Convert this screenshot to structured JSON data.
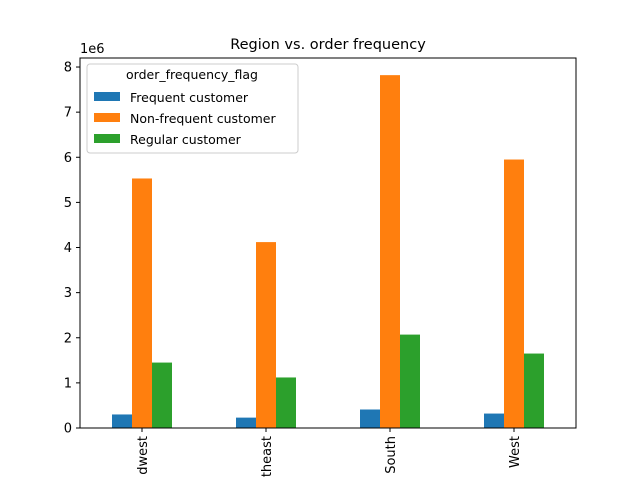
{
  "chart_data": {
    "type": "bar",
    "title": "Region vs. order frequency",
    "xlabel": "",
    "ylabel": "",
    "offset_label": "1e6",
    "categories": [
      "Midwest",
      "Northeast",
      "South",
      "West"
    ],
    "category_labels_visible": [
      "dwest",
      "theast",
      "South",
      "West"
    ],
    "ylim": [
      0,
      8.2
    ],
    "yticks": [
      0,
      1,
      2,
      3,
      4,
      5,
      6,
      7,
      8
    ],
    "ytick_labels": [
      "0",
      "1",
      "2",
      "3",
      "4",
      "5",
      "6",
      "7",
      "8"
    ],
    "grid": false,
    "legend": {
      "title": "order_frequency_flag",
      "placement": "top-left"
    },
    "series": [
      {
        "name": "Frequent customer",
        "color": "#1f77b4",
        "values": [
          0.3,
          0.23,
          0.41,
          0.32
        ]
      },
      {
        "name": "Non-frequent customer",
        "color": "#ff7f0e",
        "values": [
          5.53,
          4.12,
          7.82,
          5.95
        ]
      },
      {
        "name": "Regular customer",
        "color": "#2ca02c",
        "values": [
          1.45,
          1.12,
          2.07,
          1.65
        ]
      }
    ]
  }
}
